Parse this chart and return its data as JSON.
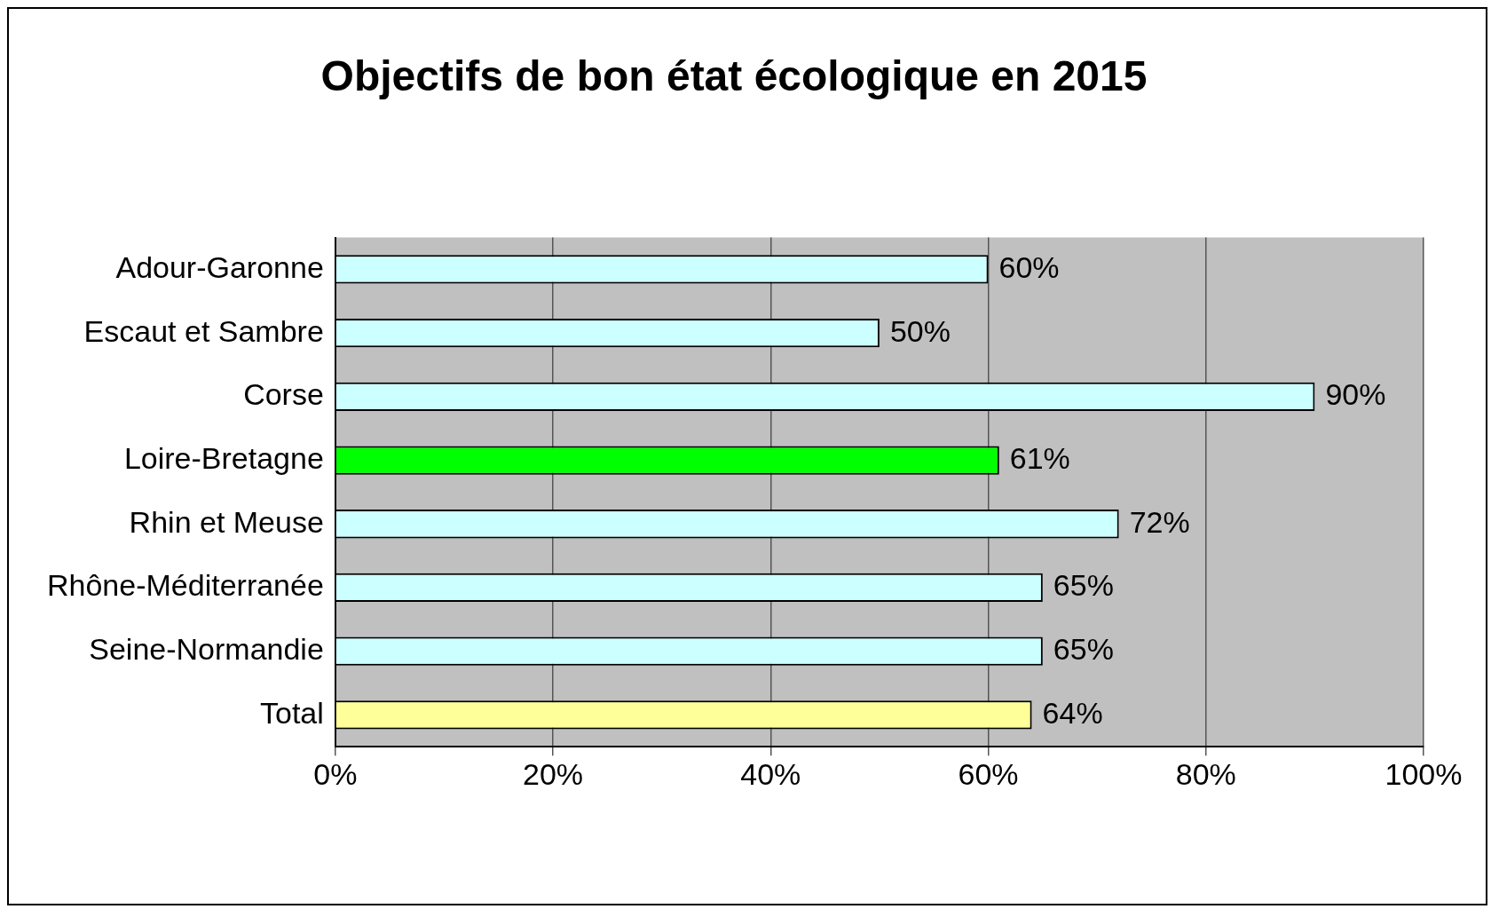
{
  "chart_data": {
    "type": "bar",
    "orientation": "horizontal",
    "title": "Objectifs de bon état écologique en 2015",
    "categories": [
      "Adour-Garonne",
      "Escaut et Sambre",
      "Corse",
      "Loire-Bretagne",
      "Rhin et Meuse",
      "Rhône-Méditerranée",
      "Seine-Normandie",
      "Total"
    ],
    "values": [
      60,
      50,
      90,
      61,
      72,
      65,
      65,
      64
    ],
    "colors": [
      "#ccffff",
      "#ccffff",
      "#ccffff",
      "#00ff00",
      "#ccffff",
      "#ccffff",
      "#ccffff",
      "#ffff99"
    ],
    "value_labels": [
      "60%",
      "50%",
      "90%",
      "61%",
      "72%",
      "65%",
      "65%",
      "64%"
    ],
    "xlim": [
      0,
      100
    ],
    "xticks": [
      {
        "value": 0,
        "label": "0%"
      },
      {
        "value": 20,
        "label": "20%"
      },
      {
        "value": 40,
        "label": "40%"
      },
      {
        "value": 60,
        "label": "60%"
      },
      {
        "value": 80,
        "label": "80%"
      },
      {
        "value": 100,
        "label": "100%"
      }
    ],
    "grid": "x",
    "legend": false
  }
}
